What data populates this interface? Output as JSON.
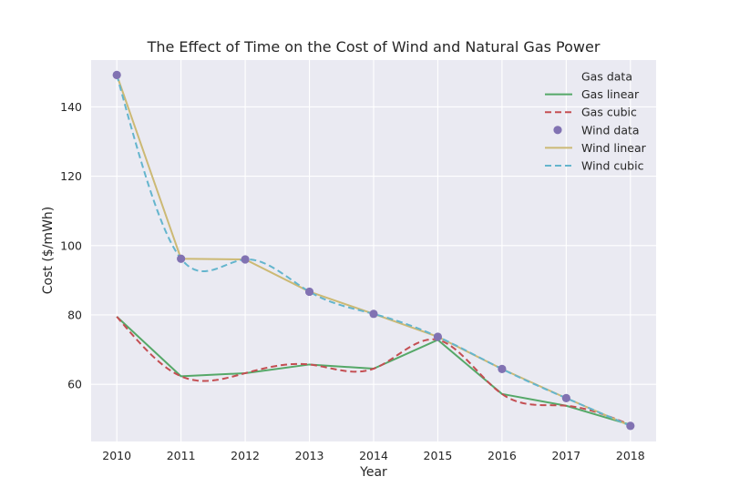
{
  "chart_data": {
    "type": "line",
    "title": "The Effect of Time on the Cost of Wind and Natural Gas Power",
    "xlabel": "Year",
    "ylabel": "Cost ($/mWh)",
    "xlim": [
      2009.6,
      2018.4
    ],
    "ylim": [
      43.5,
      153.5
    ],
    "xticks": [
      2010,
      2011,
      2012,
      2013,
      2014,
      2015,
      2016,
      2017,
      2018
    ],
    "yticks": [
      60,
      80,
      100,
      120,
      140
    ],
    "grid": true,
    "legend_position": "top-right",
    "colors": {
      "background": "#eaeaf2",
      "grid": "#ffffff",
      "gas_linear": "#55a868",
      "gas_cubic": "#c44e52",
      "wind_data": "#8172b2",
      "wind_linear": "#ccb974",
      "wind_cubic": "#64b5cd"
    },
    "series": [
      {
        "name": "Gas data",
        "kind": "points",
        "color": "none",
        "x": [
          2010,
          2011,
          2012,
          2013,
          2014,
          2015,
          2016,
          2017,
          2018
        ],
        "y": [
          79.5,
          62.3,
          63.2,
          65.7,
          64.5,
          72.8,
          57.2,
          53.8,
          48.3
        ]
      },
      {
        "name": "Gas linear",
        "kind": "line",
        "color": "#55a868",
        "x": [
          2010,
          2011,
          2012,
          2013,
          2014,
          2015,
          2016,
          2017,
          2018
        ],
        "y": [
          79.5,
          62.3,
          63.2,
          65.7,
          64.5,
          72.8,
          57.2,
          53.8,
          48.3
        ]
      },
      {
        "name": "Gas cubic",
        "kind": "cubic",
        "color": "#c44e52",
        "x": [
          2010,
          2011,
          2012,
          2013,
          2014,
          2015,
          2016,
          2017,
          2018
        ],
        "y": [
          79.5,
          62.3,
          63.2,
          65.7,
          64.5,
          72.8,
          57.2,
          53.8,
          48.3
        ]
      },
      {
        "name": "Wind data",
        "kind": "points",
        "color": "#8172b2",
        "x": [
          2010,
          2011,
          2012,
          2013,
          2014,
          2015,
          2016,
          2017,
          2018
        ],
        "y": [
          149.2,
          96.2,
          96.0,
          86.7,
          80.3,
          73.7,
          64.4,
          56.0,
          48.0
        ]
      },
      {
        "name": "Wind linear",
        "kind": "line",
        "color": "#ccb974",
        "x": [
          2010,
          2011,
          2012,
          2013,
          2014,
          2015,
          2016,
          2017,
          2018
        ],
        "y": [
          149.2,
          96.2,
          96.0,
          86.7,
          80.3,
          73.7,
          64.4,
          56.0,
          48.0
        ]
      },
      {
        "name": "Wind cubic",
        "kind": "cubic",
        "color": "#64b5cd",
        "x": [
          2010,
          2011,
          2012,
          2013,
          2014,
          2015,
          2016,
          2017,
          2018
        ],
        "y": [
          149.2,
          96.2,
          96.0,
          86.7,
          80.3,
          73.7,
          64.4,
          56.0,
          48.0
        ]
      }
    ]
  }
}
